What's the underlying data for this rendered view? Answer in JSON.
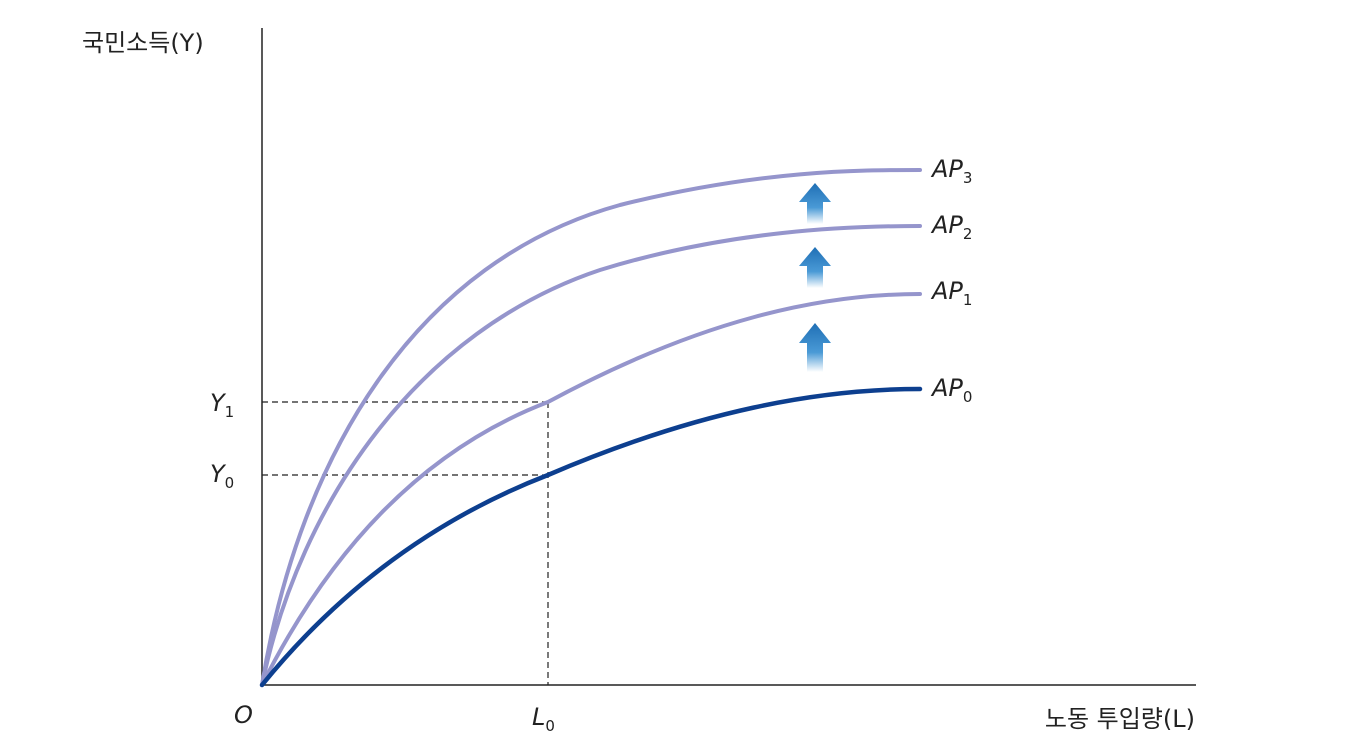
{
  "axes": {
    "y_label": "국민소득(Y)",
    "x_label": "노동 투입량(L)",
    "origin": "O"
  },
  "markers": {
    "x": [
      {
        "main": "L",
        "sub": "0"
      }
    ],
    "y": [
      {
        "main": "Y",
        "sub": "1"
      },
      {
        "main": "Y",
        "sub": "0"
      }
    ]
  },
  "curves": [
    {
      "main": "AP",
      "sub": "3"
    },
    {
      "main": "AP",
      "sub": "2"
    },
    {
      "main": "AP",
      "sub": "1"
    },
    {
      "main": "AP",
      "sub": "0"
    }
  ]
}
